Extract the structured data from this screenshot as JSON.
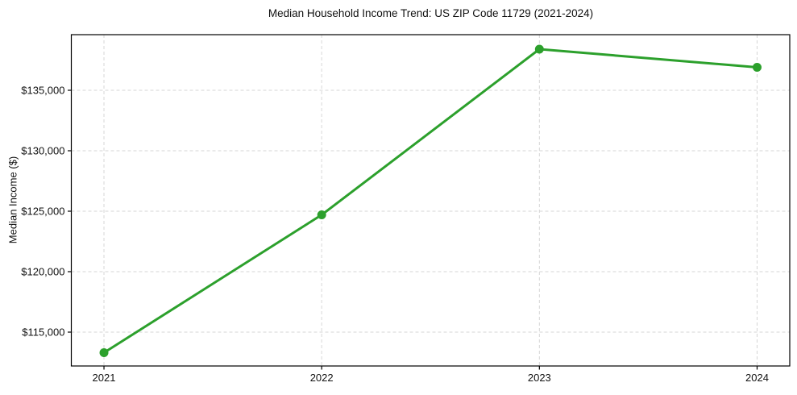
{
  "chart": {
    "title": "Median Household Income Trend: US ZIP Code 11729 (2021-2024)",
    "ylabel": "Median Income ($)"
  },
  "chart_data": {
    "type": "line",
    "x": [
      2021,
      2022,
      2023,
      2024
    ],
    "values": [
      113300,
      124700,
      138400,
      136900
    ],
    "title": "Median Household Income Trend: US ZIP Code 11729 (2021-2024)",
    "xlabel": "",
    "ylabel": "Median Income ($)",
    "xticks": [
      2021,
      2022,
      2023,
      2024
    ],
    "xtick_labels": [
      "2021",
      "2022",
      "2023",
      "2024"
    ],
    "yticks": [
      115000,
      120000,
      125000,
      130000,
      135000
    ],
    "ytick_labels": [
      "$115,000",
      "$120,000",
      "$125,000",
      "$130,000",
      "$135,000"
    ],
    "xlim": [
      2020.85,
      2024.15
    ],
    "ylim": [
      112200,
      139600
    ],
    "grid": true,
    "legend": null,
    "line_color": "#2ca02c",
    "marker_color": "#2ca02c",
    "grid_color": "#d6d6d6",
    "frame_color": "#000000",
    "text_color": "#111111",
    "background": "#ffffff"
  }
}
